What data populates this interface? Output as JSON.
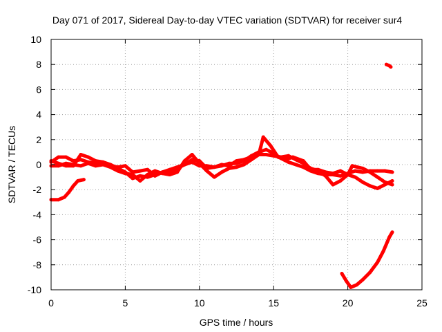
{
  "chart_data": {
    "type": "scatter",
    "title": "Day 071 of 2017, Sidereal Day-to-day VTEC variation (SDTVAR) for receiver sur4",
    "xlabel": "GPS time / hours",
    "ylabel": "SDTVAR / TECUs",
    "xlim": [
      0,
      25
    ],
    "ylim": [
      -10,
      10
    ],
    "xticks": [
      "0",
      "5",
      "10",
      "15",
      "20",
      "25"
    ],
    "yticks": [
      "-10",
      "-8",
      "-6",
      "-4",
      "-2",
      "0",
      "2",
      "4",
      "6",
      "8",
      "10"
    ],
    "grid": true,
    "series_color": "#ff0000",
    "series": [
      {
        "name": "low-start",
        "points": [
          [
            0,
            -2.8
          ],
          [
            0.5,
            -2.8
          ],
          [
            0.9,
            -2.6
          ],
          [
            1.2,
            -2.2
          ],
          [
            1.5,
            -1.7
          ],
          [
            1.8,
            -1.3
          ],
          [
            2.2,
            -1.2
          ]
        ]
      },
      {
        "name": "main-a",
        "points": [
          [
            0,
            0.2
          ],
          [
            0.5,
            0.6
          ],
          [
            1,
            0.6
          ],
          [
            1.5,
            0.3
          ],
          [
            2,
            0.4
          ],
          [
            2.5,
            0.2
          ],
          [
            3,
            0.1
          ],
          [
            3.5,
            0.2
          ],
          [
            4,
            0
          ],
          [
            4.5,
            -0.3
          ],
          [
            5,
            -0.6
          ],
          [
            5.5,
            -1.1
          ],
          [
            6,
            -0.9
          ],
          [
            6.5,
            -1
          ],
          [
            7,
            -0.8
          ],
          [
            7.5,
            -0.6
          ],
          [
            8,
            -0.6
          ],
          [
            8.5,
            -0.3
          ],
          [
            9,
            0
          ],
          [
            9.5,
            0.4
          ],
          [
            10,
            0.3
          ],
          [
            10.5,
            -0.3
          ],
          [
            11,
            -0.2
          ],
          [
            11.5,
            -0.1
          ],
          [
            12,
            0.1
          ],
          [
            12.5,
            0.1
          ],
          [
            13,
            0.3
          ],
          [
            13.5,
            0.7
          ],
          [
            14,
            1
          ],
          [
            14.5,
            1.2
          ],
          [
            15,
            0.9
          ],
          [
            15.5,
            0.5
          ],
          [
            16,
            0.2
          ],
          [
            16.5,
            0
          ],
          [
            17,
            -0.2
          ],
          [
            17.5,
            -0.5
          ],
          [
            18,
            -0.7
          ],
          [
            18.5,
            -0.8
          ],
          [
            19,
            -0.8
          ],
          [
            19.5,
            -0.9
          ],
          [
            20,
            -0.7
          ],
          [
            20.5,
            -0.5
          ],
          [
            21,
            -0.6
          ],
          [
            21.5,
            -0.5
          ],
          [
            22,
            -0.5
          ],
          [
            22.5,
            -0.5
          ],
          [
            23,
            -0.6
          ]
        ]
      },
      {
        "name": "main-b",
        "points": [
          [
            0,
            -0.1
          ],
          [
            0.5,
            -0.1
          ],
          [
            1,
            0.1
          ],
          [
            1.5,
            0
          ],
          [
            2,
            -0.1
          ],
          [
            2.5,
            0.1
          ],
          [
            3,
            -0.1
          ],
          [
            3.5,
            0
          ],
          [
            4,
            -0.2
          ],
          [
            4.5,
            -0.5
          ],
          [
            5,
            -0.7
          ],
          [
            5.5,
            -0.8
          ],
          [
            6,
            -1.3
          ],
          [
            6.5,
            -0.8
          ],
          [
            7,
            -0.5
          ],
          [
            7.5,
            -0.7
          ],
          [
            8,
            -0.8
          ],
          [
            8.5,
            -0.6
          ],
          [
            9,
            0.3
          ],
          [
            9.5,
            0.8
          ],
          [
            10,
            0.1
          ],
          [
            10.5,
            -0.5
          ],
          [
            11,
            -1
          ],
          [
            11.5,
            -0.6
          ],
          [
            12,
            -0.3
          ],
          [
            12.5,
            -0.2
          ],
          [
            13,
            0
          ],
          [
            13.5,
            0.4
          ],
          [
            14,
            0.8
          ],
          [
            14.5,
            0.8
          ],
          [
            15,
            0.7
          ],
          [
            15.5,
            0.6
          ],
          [
            16,
            0.7
          ],
          [
            16.5,
            0.4
          ],
          [
            17,
            0.1
          ],
          [
            17.5,
            -0.3
          ],
          [
            18,
            -0.5
          ],
          [
            18.5,
            -0.9
          ],
          [
            19,
            -1.6
          ],
          [
            19.5,
            -1.3
          ],
          [
            20,
            -0.8
          ],
          [
            20.5,
            -1
          ],
          [
            21,
            -1.4
          ],
          [
            21.5,
            -1.7
          ],
          [
            22,
            -1.9
          ],
          [
            22.5,
            -1.6
          ],
          [
            23,
            -1.3
          ]
        ]
      },
      {
        "name": "main-c",
        "points": [
          [
            0,
            0.3
          ],
          [
            0.5,
            0.1
          ],
          [
            1,
            -0.1
          ],
          [
            1.5,
            -0.1
          ],
          [
            2,
            0.8
          ],
          [
            2.5,
            0.6
          ],
          [
            3,
            0.3
          ],
          [
            3.5,
            0.2
          ],
          [
            4,
            -0.1
          ],
          [
            4.5,
            -0.2
          ],
          [
            5,
            -0.1
          ],
          [
            5.5,
            -0.6
          ],
          [
            6,
            -0.5
          ],
          [
            6.5,
            -0.4
          ],
          [
            7,
            -0.9
          ],
          [
            7.5,
            -0.6
          ],
          [
            8,
            -0.4
          ],
          [
            8.5,
            -0.2
          ],
          [
            9,
            0
          ],
          [
            9.5,
            0.2
          ],
          [
            10,
            -0.1
          ],
          [
            10.5,
            -0.1
          ],
          [
            11,
            -0.2
          ],
          [
            11.5,
            0
          ],
          [
            12,
            -0.1
          ],
          [
            12.5,
            0.3
          ],
          [
            13,
            0.4
          ],
          [
            13.5,
            0.6
          ],
          [
            14,
            0.8
          ],
          [
            14.3,
            2.2
          ],
          [
            14.8,
            1.5
          ],
          [
            15.3,
            0.6
          ],
          [
            15.8,
            0.4
          ],
          [
            16.3,
            0.6
          ],
          [
            17,
            0.3
          ],
          [
            17.5,
            -0.4
          ],
          [
            18,
            -0.4
          ],
          [
            18.5,
            -0.6
          ],
          [
            19,
            -0.7
          ],
          [
            19.5,
            -0.5
          ],
          [
            20,
            -0.8
          ],
          [
            20.3,
            -0.1
          ],
          [
            21,
            -0.3
          ],
          [
            21.5,
            -0.6
          ],
          [
            22,
            -1
          ],
          [
            22.5,
            -1.4
          ],
          [
            23,
            -1.6
          ]
        ]
      },
      {
        "name": "dip",
        "points": [
          [
            19.6,
            -8.7
          ],
          [
            19.9,
            -9.3
          ],
          [
            20.2,
            -9.8
          ],
          [
            20.6,
            -9.6
          ],
          [
            21,
            -9.2
          ],
          [
            21.5,
            -8.6
          ],
          [
            22,
            -7.8
          ],
          [
            22.4,
            -6.9
          ],
          [
            22.8,
            -5.8
          ],
          [
            23,
            -5.4
          ]
        ]
      },
      {
        "name": "outlier",
        "points": [
          [
            22.6,
            8
          ],
          [
            22.8,
            7.9
          ],
          [
            22.9,
            7.8
          ]
        ]
      }
    ]
  }
}
